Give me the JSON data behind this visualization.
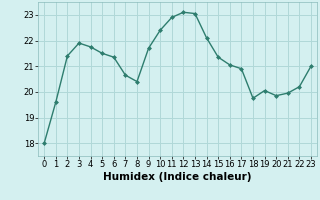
{
  "x": [
    0,
    1,
    2,
    3,
    4,
    5,
    6,
    7,
    8,
    9,
    10,
    11,
    12,
    13,
    14,
    15,
    16,
    17,
    18,
    19,
    20,
    21,
    22,
    23
  ],
  "y": [
    18.0,
    19.6,
    21.4,
    21.9,
    21.75,
    21.5,
    21.35,
    20.65,
    20.4,
    21.7,
    22.4,
    22.9,
    23.1,
    23.05,
    22.1,
    21.35,
    21.05,
    20.9,
    19.75,
    20.05,
    19.85,
    19.95,
    20.2,
    21.0
  ],
  "line_color": "#2e7d6e",
  "marker": "D",
  "marker_size": 2,
  "bg_color": "#d4f0f0",
  "grid_color": "#b0d8d8",
  "xlabel": "Humidex (Indice chaleur)",
  "ylim": [
    17.5,
    23.5
  ],
  "xlim": [
    -0.5,
    23.5
  ],
  "yticks": [
    18,
    19,
    20,
    21,
    22,
    23
  ],
  "xticks": [
    0,
    1,
    2,
    3,
    4,
    5,
    6,
    7,
    8,
    9,
    10,
    11,
    12,
    13,
    14,
    15,
    16,
    17,
    18,
    19,
    20,
    21,
    22,
    23
  ],
  "tick_fontsize": 6,
  "xlabel_fontsize": 7.5,
  "linewidth": 1.0
}
